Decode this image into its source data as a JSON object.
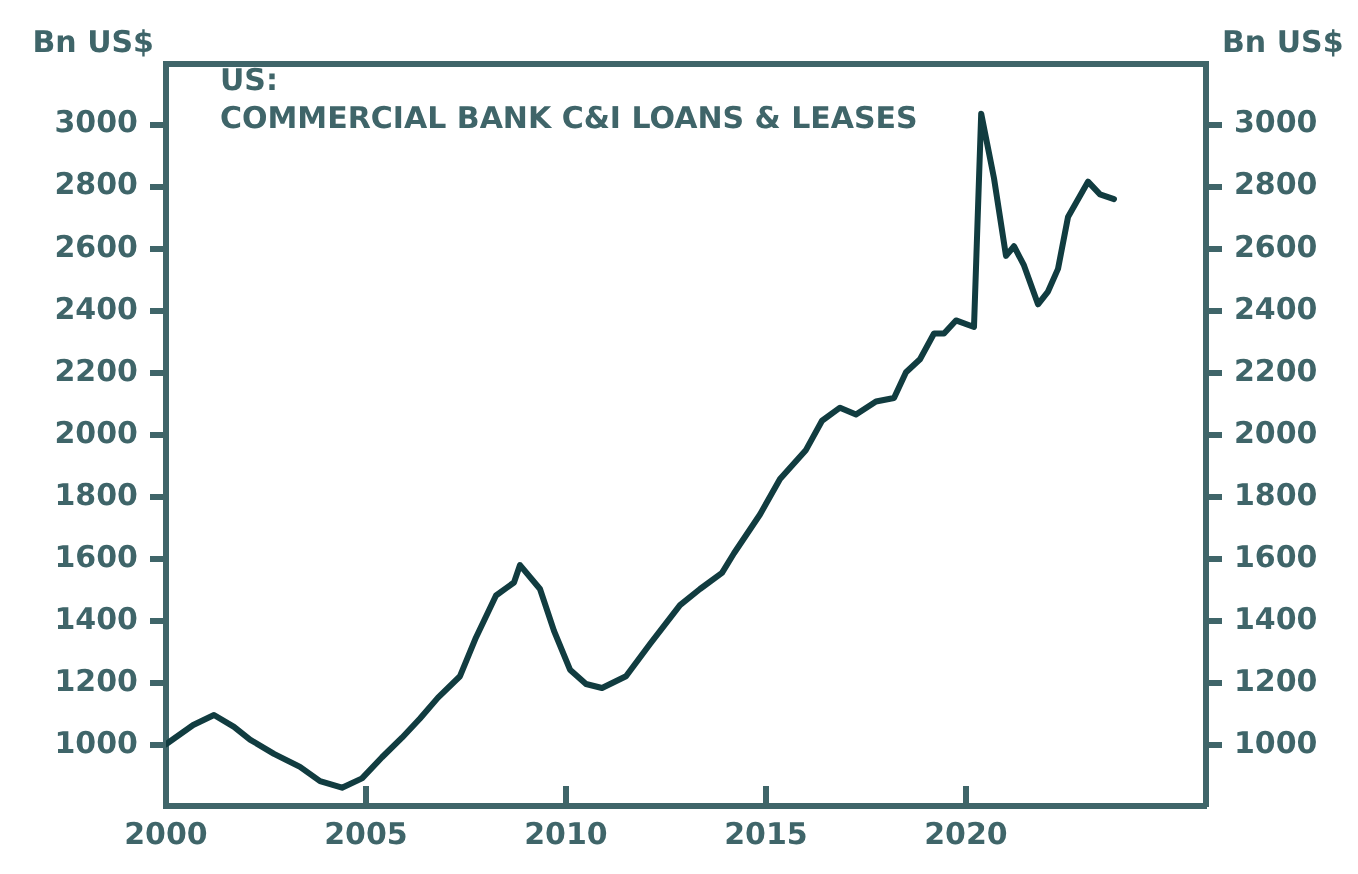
{
  "chart_data": {
    "type": "line",
    "title": "US:",
    "subtitle": "COMMERCIAL BANK C&I LOANS & LEASES",
    "ylabel": "Bn US$",
    "y2label": "Bn US$",
    "x": [
      2000.0,
      2000.68,
      2001.2,
      2001.7,
      2002.1,
      2002.7,
      2003.35,
      2003.85,
      2004.4,
      2004.9,
      2005.4,
      2005.9,
      2006.35,
      2006.8,
      2007.35,
      2007.75,
      2008.25,
      2008.7,
      2008.85,
      2009.35,
      2009.7,
      2010.1,
      2010.5,
      2010.9,
      2011.5,
      2012.1,
      2012.85,
      2013.35,
      2013.9,
      2014.2,
      2014.85,
      2015.35,
      2016.0,
      2016.4,
      2016.85,
      2017.25,
      2017.75,
      2018.2,
      2018.5,
      2018.85,
      2019.2,
      2019.45,
      2019.75,
      2020.2,
      2020.38,
      2020.7,
      2021.0,
      2021.2,
      2021.45,
      2021.8,
      2022.05,
      2022.3,
      2022.55,
      2023.05,
      2023.35,
      2023.7
    ],
    "series": [
      {
        "color": "#113c40",
        "values": [
          1004,
          1066,
          1098,
          1060,
          1019,
          973,
          931,
          885,
          864,
          894,
          962,
          1025,
          1087,
          1154,
          1223,
          1348,
          1483,
          1525,
          1581,
          1504,
          1369,
          1244,
          1198,
          1185,
          1223,
          1327,
          1452,
          1504,
          1556,
          1619,
          1744,
          1858,
          1952,
          2046,
          2088,
          2066,
          2108,
          2119,
          2202,
          2244,
          2327,
          2327,
          2369,
          2348,
          3035,
          2827,
          2577,
          2608,
          2546,
          2421,
          2462,
          2535,
          2702,
          2816,
          2775,
          2760
        ]
      }
    ],
    "xlim": [
      2000,
      2026
    ],
    "xticks": [
      2000,
      2005,
      2010,
      2015,
      2020
    ],
    "ylim": [
      805,
      3195
    ],
    "yticks": [
      1000,
      1200,
      1400,
      1600,
      1800,
      2000,
      2200,
      2400,
      2600,
      2800,
      3000
    ],
    "y2lim": [
      805,
      3195
    ],
    "y2ticks": [
      1000,
      1200,
      1400,
      1600,
      1800,
      2000,
      2200,
      2400,
      2600,
      2800,
      3000
    ],
    "grid": false,
    "legend": false,
    "marker": "none",
    "line_style": "solid"
  }
}
